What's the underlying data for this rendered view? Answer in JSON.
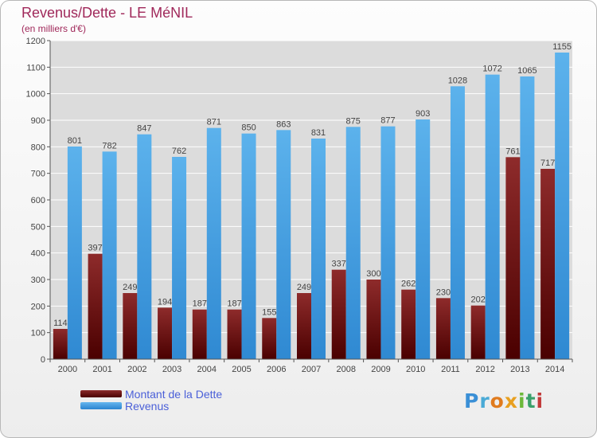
{
  "header": {
    "title": "Revenus/Dette - LE MéNIL",
    "subtitle": "(en milliers d'€)"
  },
  "legend": {
    "debt": "Montant de la Dette",
    "revenue": "Revenus"
  },
  "logo": {
    "text": "Proxiti"
  },
  "colors": {
    "debt": "#6b1a1a",
    "revenue": "#3f9ee3",
    "title": "#a0285a",
    "legend_text": "#4a5fd8"
  },
  "chart_data": {
    "type": "bar",
    "title": "Revenus/Dette - LE MéNIL",
    "subtitle": "(en milliers d'€)",
    "categories": [
      "2000",
      "2001",
      "2002",
      "2003",
      "2004",
      "2005",
      "2006",
      "2007",
      "2008",
      "2009",
      "2010",
      "2011",
      "2012",
      "2013",
      "2014"
    ],
    "series": [
      {
        "name": "Montant de la Dette",
        "values": [
          114,
          397,
          249,
          194,
          187,
          187,
          155,
          249,
          337,
          300,
          262,
          230,
          202,
          761,
          717
        ]
      },
      {
        "name": "Revenus",
        "values": [
          801,
          782,
          847,
          762,
          871,
          850,
          863,
          831,
          875,
          877,
          903,
          1028,
          1072,
          1065,
          1155
        ]
      }
    ],
    "ylim": [
      0,
      1200
    ],
    "yticks": [
      0,
      100,
      200,
      300,
      400,
      500,
      600,
      700,
      800,
      900,
      1000,
      1100,
      1200
    ],
    "grid": true,
    "legend_position": "bottom-left"
  }
}
